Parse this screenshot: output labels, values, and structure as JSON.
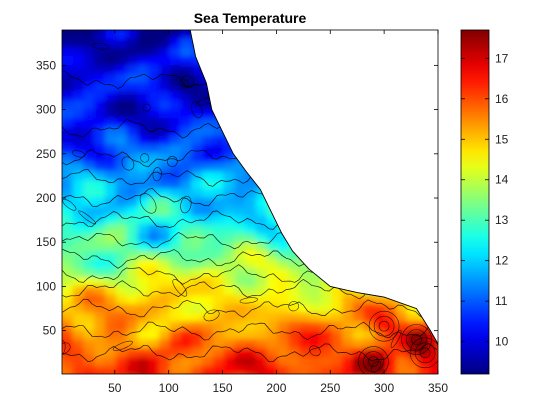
{
  "chart_data": {
    "type": "heatmap",
    "subtype": "filled-contour",
    "title": "Sea Temperature",
    "xlabel": "",
    "ylabel": "",
    "xlim": [
      1,
      350
    ],
    "ylim": [
      1,
      390
    ],
    "xticks": [
      50,
      100,
      150,
      200,
      250,
      300,
      350
    ],
    "yticks": [
      50,
      100,
      150,
      200,
      250,
      300,
      350
    ],
    "colormap": "jet",
    "colorbar": {
      "range": [
        9.2,
        17.7
      ],
      "ticks": [
        10,
        11,
        12,
        13,
        14,
        15,
        16,
        17
      ]
    },
    "temperature_gradient": [
      {
        "y": 10,
        "value": 16.3
      },
      {
        "y": 50,
        "value": 15.5
      },
      {
        "y": 90,
        "value": 14.7
      },
      {
        "y": 120,
        "value": 13.8
      },
      {
        "y": 160,
        "value": 12.8
      },
      {
        "y": 200,
        "value": 12.0
      },
      {
        "y": 250,
        "value": 10.9
      },
      {
        "y": 300,
        "value": 10.2
      },
      {
        "y": 350,
        "value": 9.9
      },
      {
        "y": 390,
        "value": 9.6
      }
    ],
    "coastline": [
      {
        "x": 120,
        "y": 390
      },
      {
        "x": 125,
        "y": 360
      },
      {
        "x": 135,
        "y": 330
      },
      {
        "x": 140,
        "y": 300
      },
      {
        "x": 150,
        "y": 275
      },
      {
        "x": 160,
        "y": 250
      },
      {
        "x": 172,
        "y": 230
      },
      {
        "x": 185,
        "y": 210
      },
      {
        "x": 195,
        "y": 185
      },
      {
        "x": 205,
        "y": 160
      },
      {
        "x": 215,
        "y": 140
      },
      {
        "x": 230,
        "y": 120
      },
      {
        "x": 250,
        "y": 100
      },
      {
        "x": 275,
        "y": 93
      },
      {
        "x": 300,
        "y": 88
      },
      {
        "x": 330,
        "y": 75
      },
      {
        "x": 343,
        "y": 50
      },
      {
        "x": 350,
        "y": 35
      }
    ],
    "hot_spots": [
      {
        "x": 290,
        "y": 15,
        "value": 17.5
      },
      {
        "x": 338,
        "y": 25,
        "value": 17.3
      },
      {
        "x": 300,
        "y": 55,
        "value": 16.8
      },
      {
        "x": 330,
        "y": 40,
        "value": 16.9
      }
    ],
    "grid": false,
    "legend": "colorbar-right"
  }
}
